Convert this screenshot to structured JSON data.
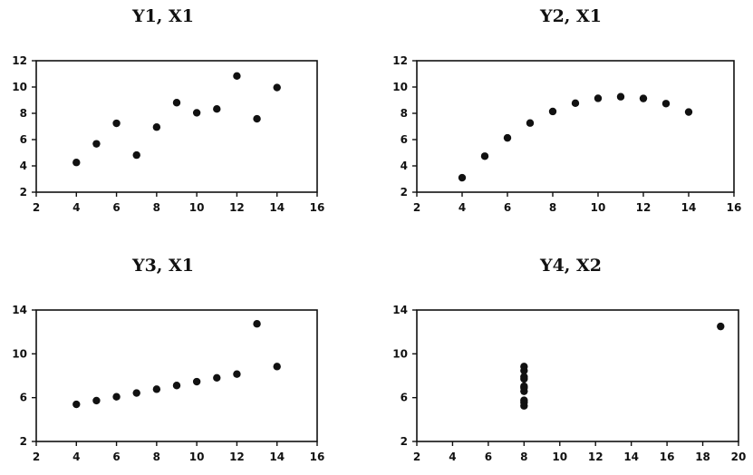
{
  "chart_data": [
    {
      "type": "scatter",
      "title": "Y1, X1",
      "xlabel": "",
      "ylabel": "",
      "xlim": [
        2,
        16
      ],
      "ylim": [
        2,
        12
      ],
      "xticks": [
        2,
        4,
        6,
        8,
        10,
        12,
        14,
        16
      ],
      "yticks": [
        2,
        4,
        6,
        8,
        10,
        12
      ],
      "grid": false,
      "points": [
        {
          "x": 4,
          "y": 4.26
        },
        {
          "x": 5,
          "y": 5.68
        },
        {
          "x": 6,
          "y": 7.24
        },
        {
          "x": 7,
          "y": 4.82
        },
        {
          "x": 8,
          "y": 6.95
        },
        {
          "x": 9,
          "y": 8.81
        },
        {
          "x": 10,
          "y": 8.04
        },
        {
          "x": 11,
          "y": 8.33
        },
        {
          "x": 12,
          "y": 10.84
        },
        {
          "x": 13,
          "y": 7.58
        },
        {
          "x": 14,
          "y": 9.96
        }
      ]
    },
    {
      "type": "scatter",
      "title": "Y2, X1",
      "xlabel": "",
      "ylabel": "",
      "xlim": [
        2,
        16
      ],
      "ylim": [
        2,
        12
      ],
      "xticks": [
        2,
        4,
        6,
        8,
        10,
        12,
        14,
        16
      ],
      "yticks": [
        2,
        4,
        6,
        8,
        10,
        12
      ],
      "grid": false,
      "points": [
        {
          "x": 4,
          "y": 3.1
        },
        {
          "x": 5,
          "y": 4.74
        },
        {
          "x": 6,
          "y": 6.13
        },
        {
          "x": 7,
          "y": 7.26
        },
        {
          "x": 8,
          "y": 8.14
        },
        {
          "x": 9,
          "y": 8.77
        },
        {
          "x": 10,
          "y": 9.14
        },
        {
          "x": 11,
          "y": 9.26
        },
        {
          "x": 12,
          "y": 9.13
        },
        {
          "x": 13,
          "y": 8.74
        },
        {
          "x": 14,
          "y": 8.1
        }
      ]
    },
    {
      "type": "scatter",
      "title": "Y3, X1",
      "xlabel": "",
      "ylabel": "",
      "xlim": [
        2,
        16
      ],
      "ylim": [
        2,
        14
      ],
      "xticks": [
        2,
        4,
        6,
        8,
        10,
        12,
        14,
        16
      ],
      "yticks": [
        2,
        6,
        10,
        14
      ],
      "grid": false,
      "points": [
        {
          "x": 4,
          "y": 5.39
        },
        {
          "x": 5,
          "y": 5.73
        },
        {
          "x": 6,
          "y": 6.08
        },
        {
          "x": 7,
          "y": 6.42
        },
        {
          "x": 8,
          "y": 6.77
        },
        {
          "x": 9,
          "y": 7.11
        },
        {
          "x": 10,
          "y": 7.46
        },
        {
          "x": 11,
          "y": 7.81
        },
        {
          "x": 12,
          "y": 8.15
        },
        {
          "x": 13,
          "y": 12.74
        },
        {
          "x": 14,
          "y": 8.84
        }
      ]
    },
    {
      "type": "scatter",
      "title": "Y4, X2",
      "xlabel": "",
      "ylabel": "",
      "xlim": [
        2,
        20
      ],
      "ylim": [
        2,
        14
      ],
      "xticks": [
        2,
        4,
        6,
        8,
        10,
        12,
        14,
        16,
        18,
        20
      ],
      "yticks": [
        2,
        6,
        10,
        14
      ],
      "grid": false,
      "points": [
        {
          "x": 8,
          "y": 5.25
        },
        {
          "x": 8,
          "y": 5.56
        },
        {
          "x": 8,
          "y": 5.76
        },
        {
          "x": 8,
          "y": 6.58
        },
        {
          "x": 8,
          "y": 6.89
        },
        {
          "x": 8,
          "y": 7.04
        },
        {
          "x": 8,
          "y": 7.71
        },
        {
          "x": 8,
          "y": 7.91
        },
        {
          "x": 8,
          "y": 8.47
        },
        {
          "x": 8,
          "y": 8.84
        },
        {
          "x": 19,
          "y": 12.5
        }
      ]
    }
  ]
}
